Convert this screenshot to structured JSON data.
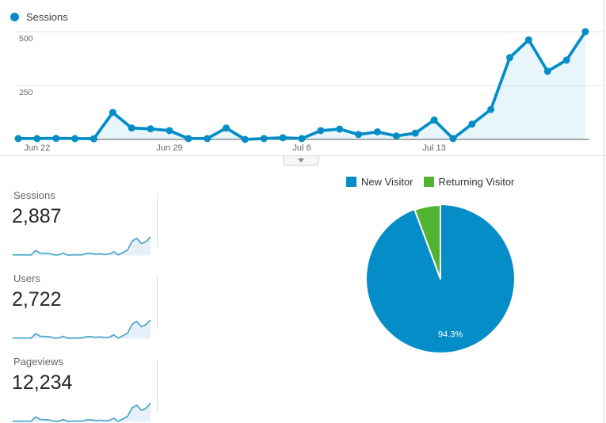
{
  "ui": {
    "timeseries_legend_label": "Sessions",
    "collapse_button": "chevron-down-icon"
  },
  "colors": {
    "line_blue": "#058DC7",
    "area_fill": "rgba(5,141,199,0.09)",
    "grid": "#e6e6e6",
    "baseline": "#595959",
    "axis_text": "#666666",
    "spark_stroke": "#4ea7cd",
    "spark_fill": "#e6f0f6",
    "pie_blue": "#058DC7",
    "pie_green": "#50B432",
    "pie_label_text": "#ffffff"
  },
  "metric_cards": [
    {
      "label": "Sessions",
      "value": "2,887"
    },
    {
      "label": "Users",
      "value": "2,722"
    },
    {
      "label": "Pageviews",
      "value": "12,234"
    }
  ],
  "pie_legend": [
    {
      "label": "New Visitor"
    },
    {
      "label": "Returning Visitor"
    }
  ],
  "chart_data": [
    {
      "id": "sessions_over_time",
      "type": "line",
      "title": "Sessions",
      "legend_position": "top-left",
      "grid": true,
      "ylim": [
        0,
        500
      ],
      "yticks": [
        500,
        250
      ],
      "x": [
        "Jun 21",
        "Jun 22",
        "Jun 23",
        "Jun 24",
        "Jun 25",
        "Jun 26",
        "Jun 27",
        "Jun 28",
        "Jun 29",
        "Jun 30",
        "Jul 1",
        "Jul 2",
        "Jul 3",
        "Jul 4",
        "Jul 5",
        "Jul 6",
        "Jul 7",
        "Jul 8",
        "Jul 9",
        "Jul 10",
        "Jul 11",
        "Jul 12",
        "Jul 13",
        "Jul 14",
        "Jul 15",
        "Jul 16",
        "Jul 17",
        "Jul 18",
        "Jul 19",
        "Jul 20",
        "Jul 21"
      ],
      "values": [
        4,
        4,
        5,
        4,
        3,
        125,
        53,
        49,
        41,
        4,
        4,
        53,
        0,
        4,
        8,
        4,
        41,
        48,
        23,
        35,
        16,
        29,
        90,
        4,
        71,
        139,
        380,
        462,
        316,
        368,
        500
      ],
      "x_axis_labels": [
        {
          "index": 1,
          "label": "Jun 22"
        },
        {
          "index": 8,
          "label": "Jun 29"
        },
        {
          "index": 15,
          "label": "Jul 6"
        },
        {
          "index": 22,
          "label": "Jul 13"
        }
      ]
    },
    {
      "id": "sessions_sparkline",
      "type": "area",
      "title": "Sessions",
      "values": [
        4,
        4,
        5,
        4,
        3,
        125,
        53,
        49,
        41,
        4,
        4,
        53,
        0,
        4,
        8,
        4,
        41,
        48,
        23,
        35,
        16,
        29,
        90,
        4,
        71,
        139,
        380,
        462,
        316,
        368,
        500
      ]
    },
    {
      "id": "users_sparkline",
      "type": "area",
      "title": "Users",
      "values": [
        5,
        4,
        5,
        4,
        3,
        118,
        50,
        46,
        39,
        4,
        4,
        50,
        0,
        4,
        8,
        4,
        39,
        45,
        22,
        33,
        15,
        27,
        85,
        4,
        67,
        131,
        358,
        435,
        298,
        347,
        468
      ]
    },
    {
      "id": "pageviews_sparkline",
      "type": "area",
      "title": "Pageviews",
      "values": [
        18,
        16,
        20,
        16,
        12,
        540,
        225,
        205,
        170,
        18,
        16,
        225,
        8,
        16,
        34,
        16,
        170,
        200,
        95,
        145,
        65,
        120,
        380,
        18,
        300,
        590,
        1600,
        1946,
        1330,
        1550,
        2170
      ]
    },
    {
      "id": "visitor_type_pie",
      "type": "pie",
      "labels": [
        "New Visitor",
        "Returning Visitor"
      ],
      "values": [
        94.3,
        5.7
      ],
      "unit": "percent",
      "data_label": "94.3%",
      "colors": [
        "#058DC7",
        "#50B432"
      ],
      "legend_position": "top"
    }
  ]
}
